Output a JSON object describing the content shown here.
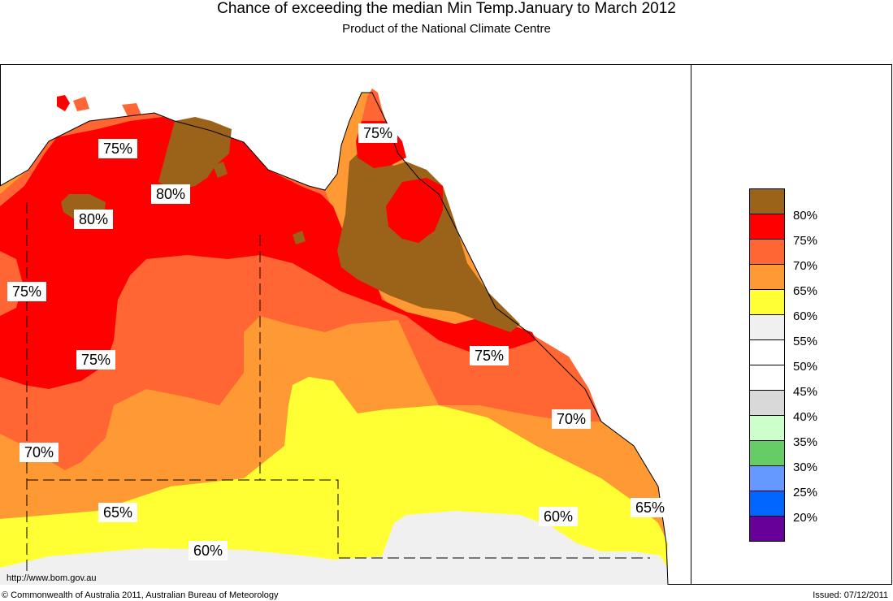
{
  "header": {
    "title": "Chance of exceeding the median Min Temp.January to March 2012",
    "subtitle": "Product of the National Climate Centre"
  },
  "map": {
    "labels": [
      {
        "text": "75%"
      },
      {
        "text": "80%"
      },
      {
        "text": "80%"
      },
      {
        "text": "75%"
      },
      {
        "text": "75%"
      },
      {
        "text": "75%"
      },
      {
        "text": "75%"
      },
      {
        "text": "70%"
      },
      {
        "text": "70%"
      },
      {
        "text": "65%"
      },
      {
        "text": "60%"
      },
      {
        "text": "60%"
      },
      {
        "text": "65%"
      }
    ],
    "colors": {
      "p80": "#9b621a",
      "p75": "#ff0000",
      "p70": "#ff6633",
      "p65": "#ff9933",
      "p60": "#ffff33",
      "p55": "#f0f0f0",
      "ocean": "#ffffff"
    }
  },
  "legend": {
    "entries": [
      {
        "label": "80%",
        "color": "#9b621a"
      },
      {
        "label": "75%",
        "color": "#ff0000"
      },
      {
        "label": "70%",
        "color": "#ff6633"
      },
      {
        "label": "65%",
        "color": "#ff9933"
      },
      {
        "label": "60%",
        "color": "#ffff33"
      },
      {
        "label": "55%",
        "color": "#f0f0f0"
      },
      {
        "label": "50%",
        "color": "#ffffff"
      },
      {
        "label": "45%",
        "color": "#ffffff"
      },
      {
        "label": "40%",
        "color": "#d9d9d9"
      },
      {
        "label": "35%",
        "color": "#ccffcc"
      },
      {
        "label": "30%",
        "color": "#66cc66"
      },
      {
        "label": "25%",
        "color": "#6699ff"
      },
      {
        "label": "20%",
        "color": "#0066ff"
      },
      {
        "label": "",
        "color": "#660099"
      }
    ]
  },
  "footer": {
    "url": "http://www.bom.gov.au",
    "copyright": "© Commonwealth of Australia 2011, Australian Bureau of Meteorology",
    "issued": "Issued: 07/12/2011"
  }
}
